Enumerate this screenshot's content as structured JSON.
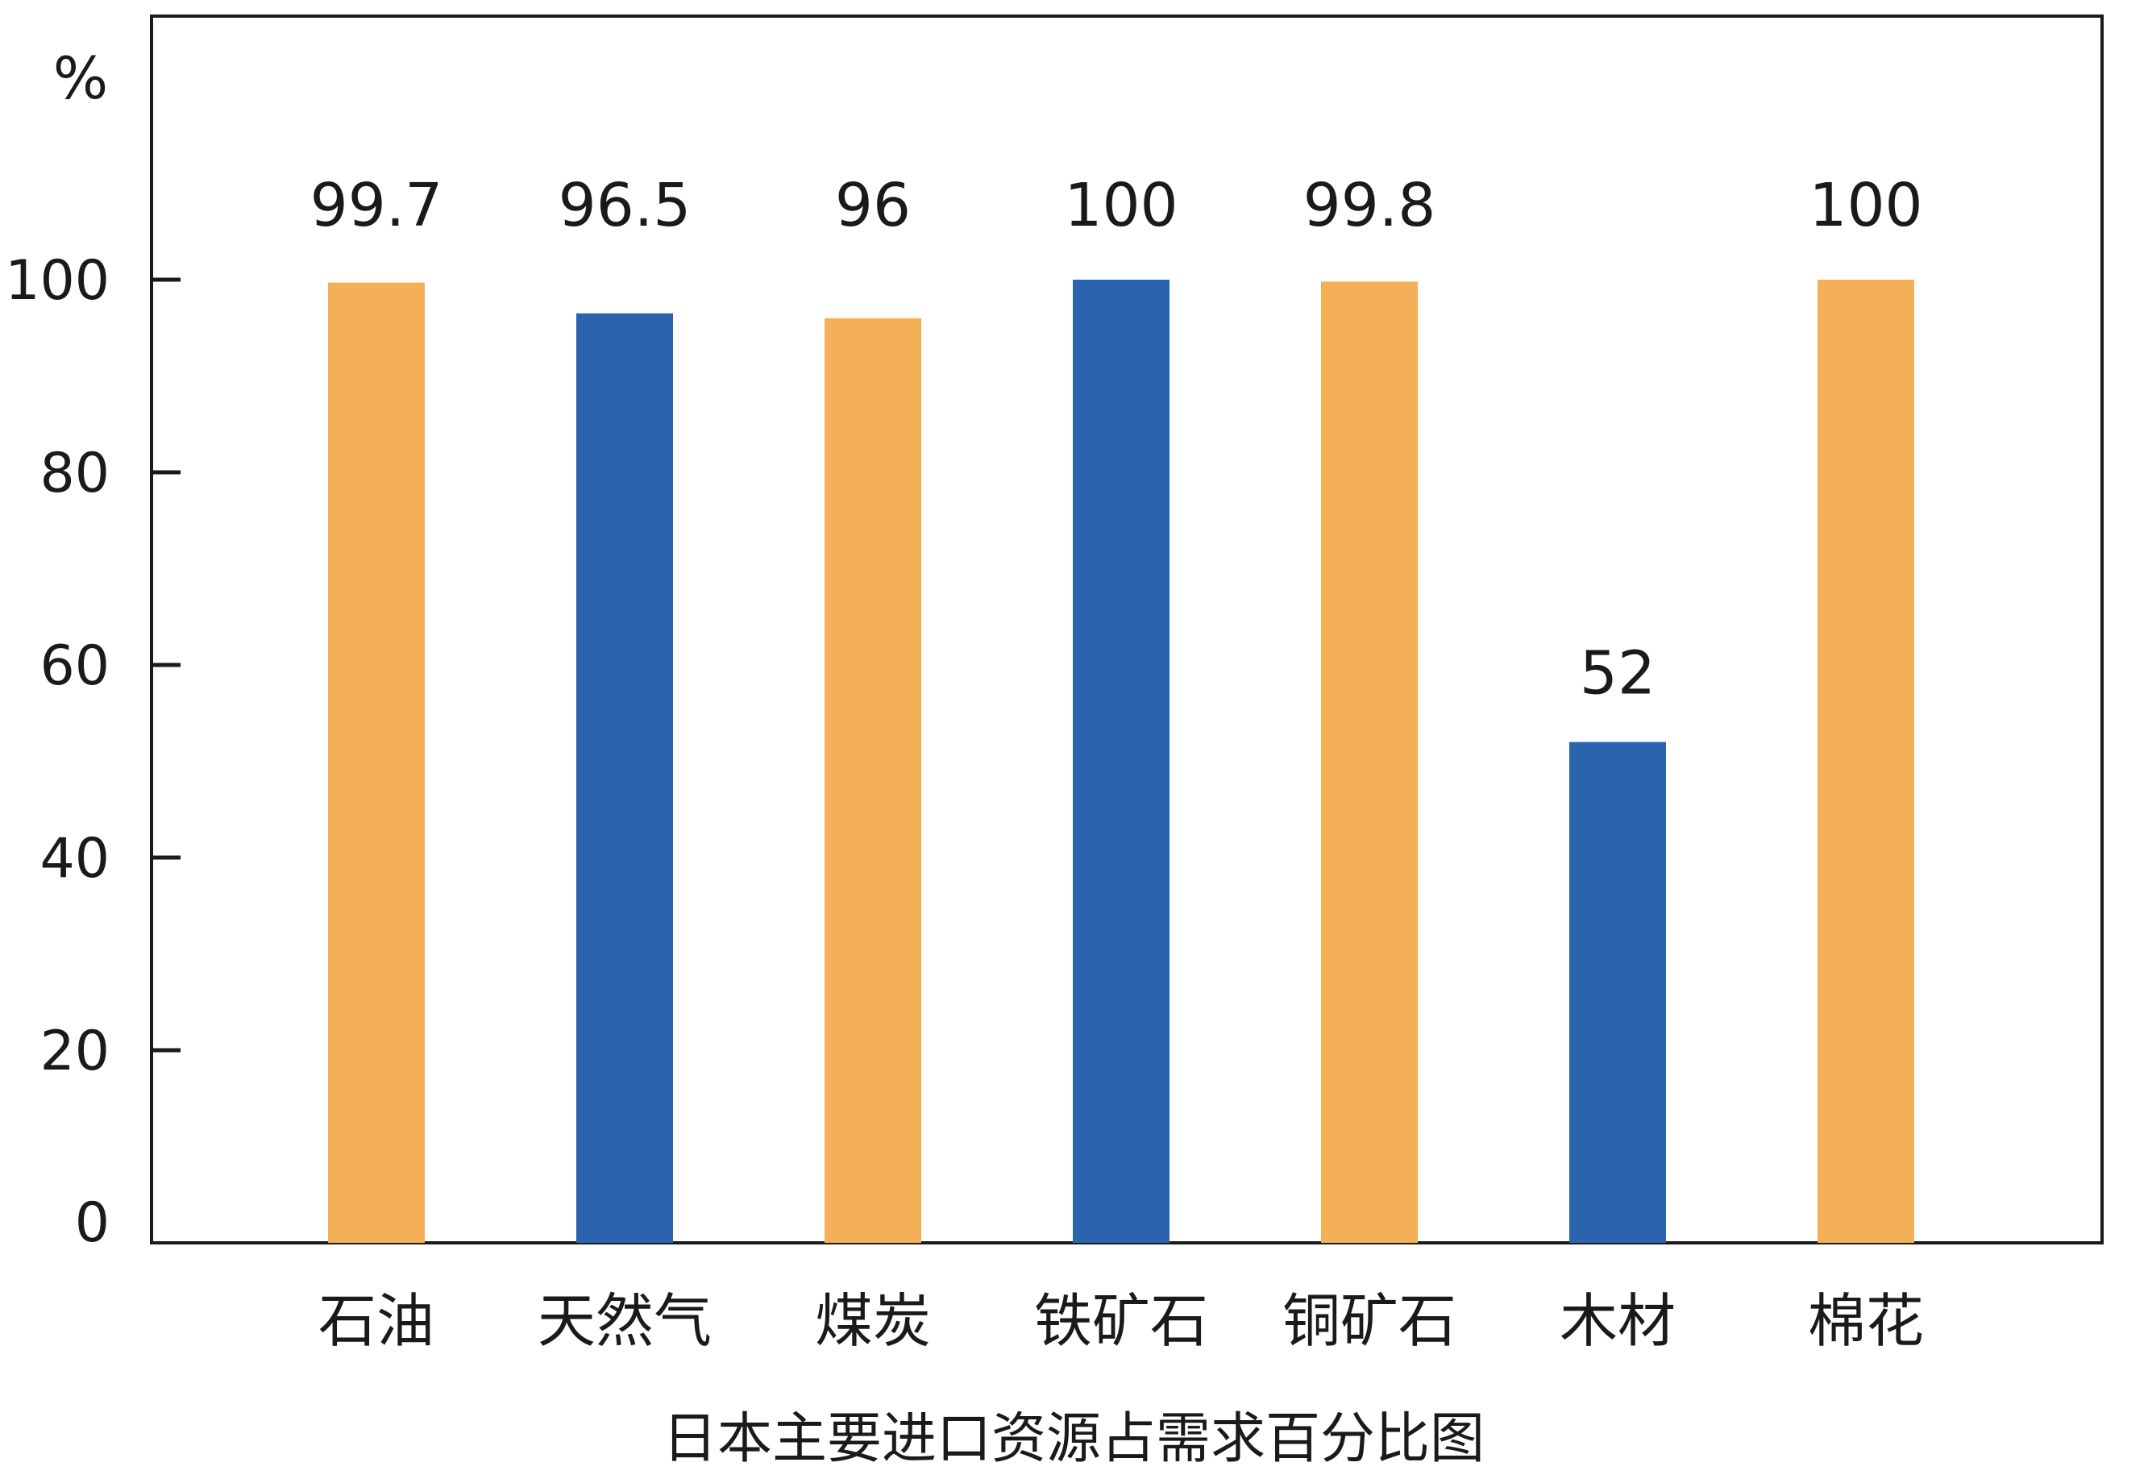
{
  "chart_data": {
    "type": "bar",
    "title": "日本主要进口资源占需求百分比图",
    "ylabel": "%",
    "xlabel": "",
    "ylim": [
      0,
      100
    ],
    "yticks": [
      0,
      20,
      40,
      60,
      80,
      100
    ],
    "categories": [
      "石油",
      "天然气",
      "煤炭",
      "铁矿石",
      "铜矿石",
      "木材",
      "棉花"
    ],
    "values": [
      99.7,
      96.5,
      96,
      100,
      99.8,
      52,
      100
    ],
    "data_labels": [
      "99.7",
      "96.5",
      "96",
      "100",
      "99.8",
      "52",
      "100"
    ],
    "bar_colors": [
      "#F4B057",
      "#2A64AE",
      "#F4B057",
      "#2A64AE",
      "#F4B057",
      "#2A64AE",
      "#F4B057"
    ],
    "grid": false,
    "legend": "none"
  }
}
